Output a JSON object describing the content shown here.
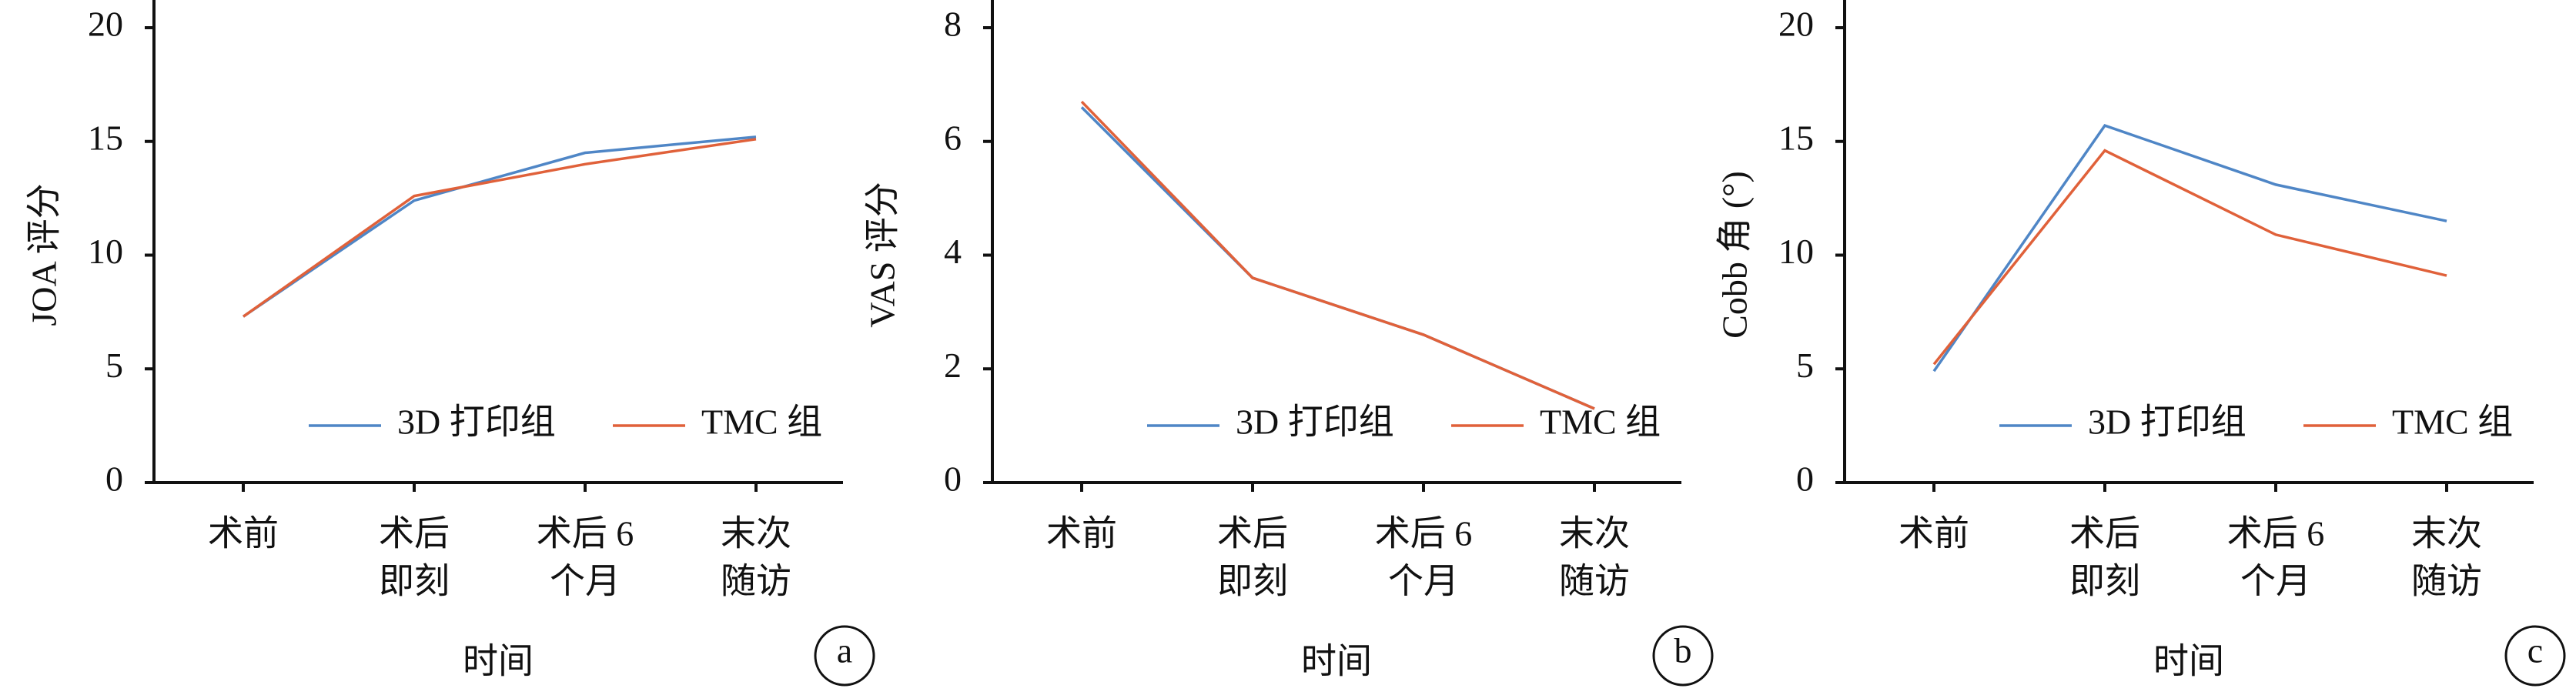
{
  "chart_data": [
    {
      "type": "line",
      "panel_label": "a",
      "y_label": "JOA 评分",
      "x_label": "时间",
      "categories": [
        [
          "术前"
        ],
        [
          "术后",
          "即刻"
        ],
        [
          "术后 6",
          "个月"
        ],
        [
          "末次",
          "随访"
        ]
      ],
      "series": [
        {
          "name": "3D 打印组",
          "color": "#4f86c6",
          "values": [
            7.3,
            12.4,
            14.5,
            15.2
          ]
        },
        {
          "name": "TMC 组",
          "color": "#e0613a",
          "values": [
            7.3,
            12.6,
            14.0,
            15.1
          ]
        }
      ],
      "ylim": [
        0,
        20
      ],
      "yticks": [
        0,
        5,
        10,
        15,
        20
      ]
    },
    {
      "type": "line",
      "panel_label": "b",
      "y_label": "VAS 评分",
      "x_label": "时间",
      "categories": [
        [
          "术前"
        ],
        [
          "术后",
          "即刻"
        ],
        [
          "术后 6",
          "个月"
        ],
        [
          "末次",
          "随访"
        ]
      ],
      "series": [
        {
          "name": "3D 打印组",
          "color": "#4f86c6",
          "values": [
            6.6,
            3.6,
            2.6,
            1.3
          ]
        },
        {
          "name": "TMC 组",
          "color": "#e0613a",
          "values": [
            6.7,
            3.6,
            2.6,
            1.3
          ]
        }
      ],
      "ylim": [
        0,
        8
      ],
      "yticks": [
        0,
        2,
        4,
        6,
        8
      ]
    },
    {
      "type": "line",
      "panel_label": "c",
      "y_label": "Cobb 角 (°)",
      "x_label": "时间",
      "categories": [
        [
          "术前"
        ],
        [
          "术后",
          "即刻"
        ],
        [
          "术后 6",
          "个月"
        ],
        [
          "末次",
          "随访"
        ]
      ],
      "series": [
        {
          "name": "3D 打印组",
          "color": "#4f86c6",
          "values": [
            4.9,
            15.7,
            13.1,
            11.5
          ]
        },
        {
          "name": "TMC 组",
          "color": "#e0613a",
          "values": [
            5.2,
            14.6,
            10.9,
            9.1
          ]
        }
      ],
      "ylim": [
        0,
        20
      ],
      "yticks": [
        0,
        5,
        10,
        15,
        20
      ]
    }
  ]
}
